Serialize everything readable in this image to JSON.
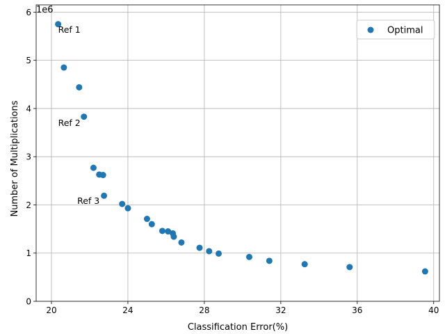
{
  "chart_data": {
    "type": "scatter",
    "xlabel": "Classification Error(%)",
    "ylabel": "Number of Multiplications",
    "y_offset_label": "1e6",
    "xlim": [
      19.2,
      40.3
    ],
    "ylim": [
      0,
      6.15
    ],
    "xticks": [
      20,
      24,
      28,
      32,
      36,
      40
    ],
    "yticks": [
      0,
      1,
      2,
      3,
      4,
      5,
      6
    ],
    "grid": true,
    "legend_position": "top-right",
    "series": [
      {
        "name": "Optimal",
        "color": "#1f77b4",
        "points": [
          [
            20.35,
            5.75
          ],
          [
            20.65,
            4.85
          ],
          [
            21.45,
            4.44
          ],
          [
            21.7,
            3.83
          ],
          [
            22.2,
            2.77
          ],
          [
            22.5,
            2.63
          ],
          [
            22.7,
            2.62
          ],
          [
            22.75,
            2.19
          ],
          [
            23.7,
            2.02
          ],
          [
            24.0,
            1.93
          ],
          [
            25.0,
            1.71
          ],
          [
            25.25,
            1.6
          ],
          [
            25.8,
            1.46
          ],
          [
            26.1,
            1.45
          ],
          [
            26.35,
            1.41
          ],
          [
            26.4,
            1.34
          ],
          [
            26.8,
            1.22
          ],
          [
            27.75,
            1.11
          ],
          [
            28.25,
            1.04
          ],
          [
            28.75,
            0.99
          ],
          [
            30.35,
            0.92
          ],
          [
            31.4,
            0.84
          ],
          [
            33.25,
            0.77
          ],
          [
            35.6,
            0.71
          ],
          [
            39.55,
            0.62
          ]
        ]
      }
    ],
    "annotations": [
      {
        "text": "Ref 1",
        "x": 20.35,
        "y": 5.57
      },
      {
        "text": "Ref 2",
        "x": 20.35,
        "y": 3.64
      },
      {
        "text": "Ref 3",
        "x": 21.35,
        "y": 2.02
      }
    ]
  }
}
